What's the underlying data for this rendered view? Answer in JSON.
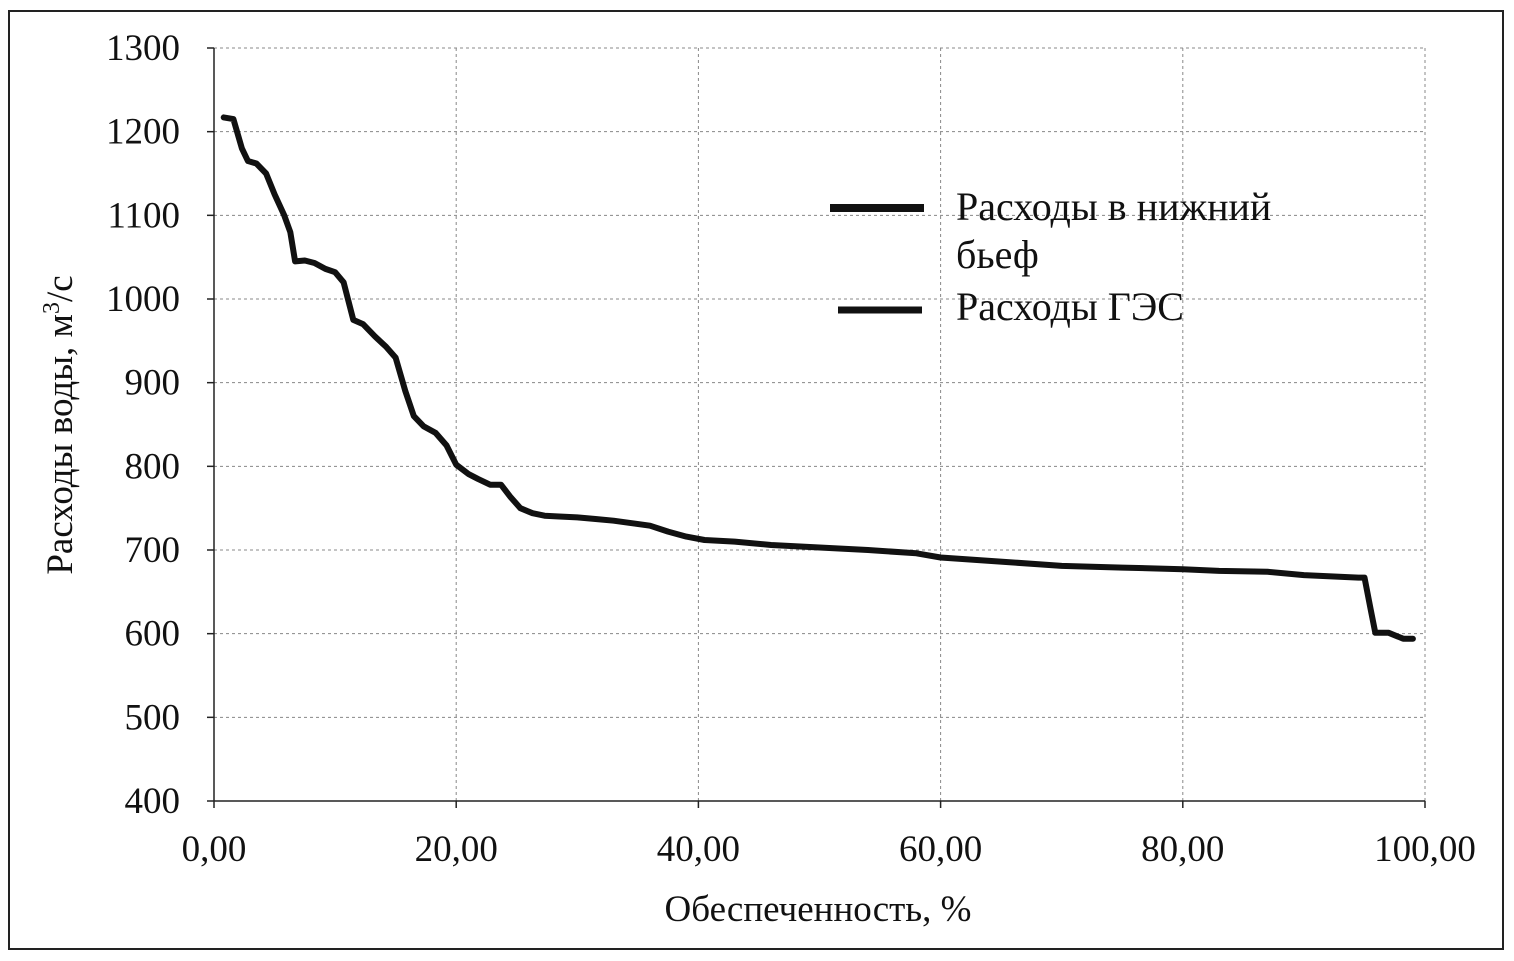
{
  "chart_data": {
    "type": "line",
    "xlabel": "Обеспеченность, %",
    "ylabel": "Расходы воды, м",
    "ylabel_sup": "3",
    "ylabel_end": "/с",
    "xlim": [
      0,
      100
    ],
    "ylim": [
      400,
      1300
    ],
    "x_ticks": [
      0,
      20,
      40,
      60,
      80,
      100
    ],
    "x_tick_labels": [
      "0,00",
      "20,00",
      "40,00",
      "60,00",
      "80,00",
      "100,00"
    ],
    "y_ticks": [
      400,
      500,
      600,
      700,
      800,
      900,
      1000,
      1100,
      1200,
      1300
    ],
    "y_tick_labels": [
      "400",
      "500",
      "600",
      "700",
      "800",
      "900",
      "1000",
      "1100",
      "1200",
      "1300"
    ],
    "grid": true,
    "legend_position": "top-right",
    "series": [
      {
        "name": "Расходы в нижний бьеф",
        "color": "#111111",
        "points": [
          [
            0.8,
            1217
          ],
          [
            1.6,
            1215
          ],
          [
            2.3,
            1180
          ],
          [
            2.8,
            1165
          ],
          [
            3.5,
            1162
          ],
          [
            4.3,
            1150
          ],
          [
            5.0,
            1125
          ],
          [
            5.8,
            1100
          ],
          [
            6.3,
            1080
          ],
          [
            6.7,
            1045
          ],
          [
            7.5,
            1046
          ],
          [
            8.3,
            1043
          ],
          [
            9.2,
            1036
          ],
          [
            10.0,
            1032
          ],
          [
            10.7,
            1020
          ],
          [
            11.5,
            975
          ],
          [
            12.3,
            970
          ],
          [
            13.3,
            955
          ],
          [
            14.2,
            943
          ],
          [
            15.0,
            930
          ],
          [
            15.8,
            890
          ],
          [
            16.5,
            860
          ],
          [
            17.3,
            848
          ],
          [
            18.3,
            840
          ],
          [
            19.2,
            825
          ],
          [
            20.0,
            802
          ],
          [
            21.0,
            791
          ],
          [
            21.8,
            785
          ],
          [
            22.8,
            778
          ],
          [
            23.7,
            778
          ],
          [
            24.5,
            763
          ],
          [
            25.3,
            750
          ],
          [
            26.3,
            744
          ],
          [
            27.3,
            741
          ],
          [
            28.5,
            740
          ],
          [
            30.0,
            739
          ],
          [
            31.5,
            737
          ],
          [
            33.0,
            735
          ],
          [
            34.5,
            732
          ],
          [
            36.0,
            729
          ],
          [
            37.5,
            722
          ],
          [
            39.0,
            716
          ],
          [
            40.5,
            712
          ],
          [
            43.0,
            710
          ],
          [
            46.0,
            706
          ],
          [
            50.0,
            703
          ],
          [
            54.0,
            700
          ],
          [
            58.0,
            696
          ],
          [
            60.0,
            691
          ],
          [
            63.0,
            688
          ],
          [
            66.0,
            685
          ],
          [
            70.0,
            681
          ],
          [
            75.0,
            679
          ],
          [
            80.0,
            677
          ],
          [
            83.0,
            675
          ],
          [
            87.0,
            674
          ],
          [
            90.0,
            670
          ],
          [
            94.5,
            667
          ],
          [
            95.0,
            667
          ],
          [
            95.5,
            630
          ],
          [
            95.9,
            601
          ],
          [
            97.0,
            601
          ],
          [
            98.2,
            594
          ],
          [
            99.0,
            594
          ]
        ]
      },
      {
        "name": "Расходы ГЭС",
        "color": "#111111",
        "points": []
      }
    ]
  },
  "legend": [
    {
      "line1": "Расходы в нижний",
      "line2": "бьеф"
    },
    {
      "line1": "Расходы ГЭС",
      "line2": ""
    }
  ]
}
